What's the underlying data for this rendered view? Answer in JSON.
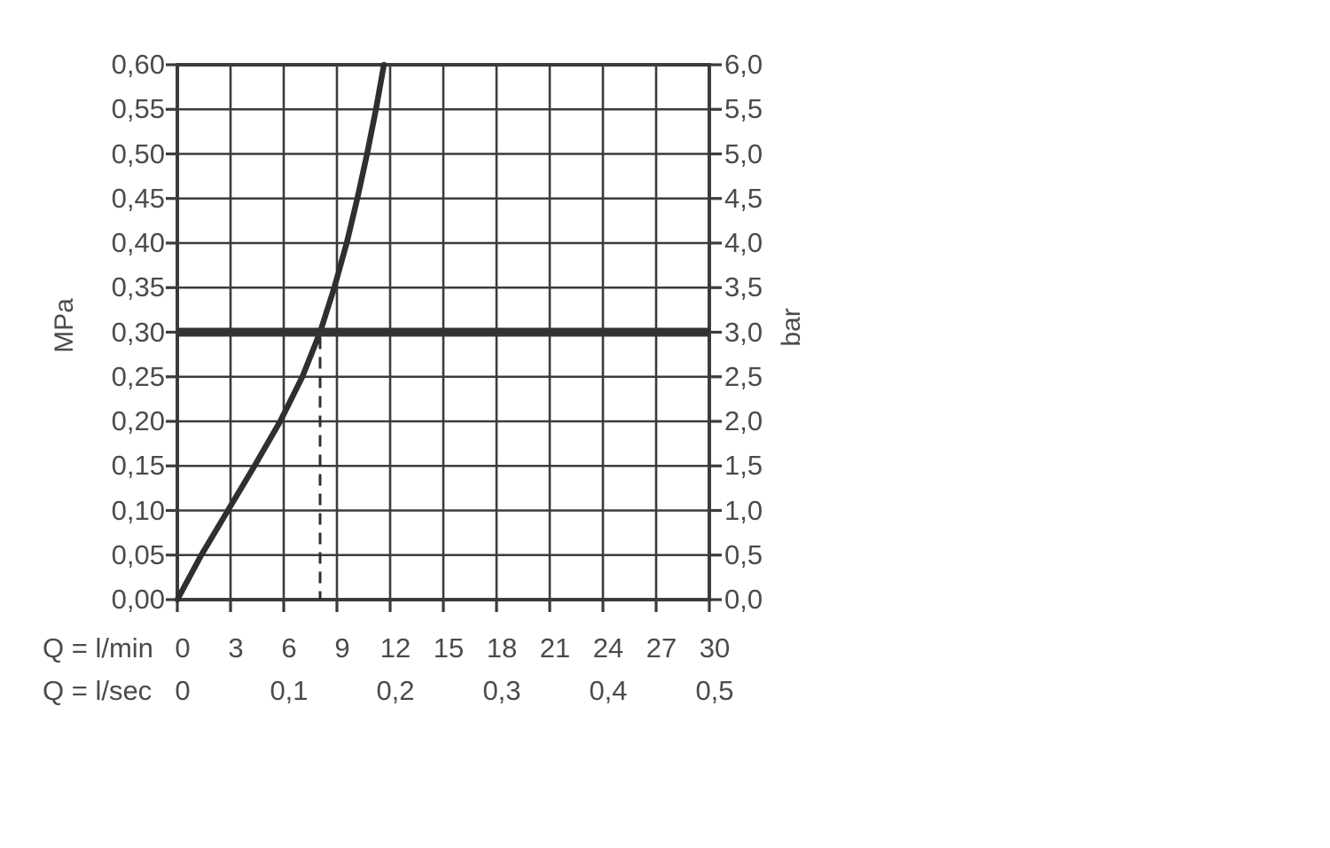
{
  "colors": {
    "grid": "#3b3b3b",
    "curve": "#2f2f2f",
    "reference_line": "#333333",
    "text": "#4b4b4b",
    "background": "#ffffff"
  },
  "chart_data": {
    "type": "line",
    "grid": true,
    "y_left": {
      "label": "MPa",
      "min": 0.0,
      "max": 0.6,
      "ticks": [
        "0,60",
        "0,55",
        "0,50",
        "0,45",
        "0,40",
        "0,35",
        "0,30",
        "0,25",
        "0,20",
        "0,15",
        "0,10",
        "0,05",
        "0,00"
      ]
    },
    "y_right": {
      "label": "bar",
      "min": 0.0,
      "max": 6.0,
      "ticks": [
        "6,0",
        "5,5",
        "5,0",
        "4,5",
        "4,0",
        "3,5",
        "3,0",
        "2,5",
        "2,0",
        "1,5",
        "1,0",
        "0,5",
        "0,0"
      ]
    },
    "x_lmin": {
      "label": "Q = l/min",
      "min": 0,
      "max": 30,
      "ticks": [
        "0",
        "3",
        "6",
        "9",
        "12",
        "15",
        "18",
        "21",
        "24",
        "27",
        "30"
      ],
      "tick_values": [
        0,
        3,
        6,
        9,
        12,
        15,
        18,
        21,
        24,
        27,
        30
      ]
    },
    "x_lsec": {
      "label": "Q = l/sec",
      "ticks": [
        "0",
        "0,1",
        "0,2",
        "0,3",
        "0,4",
        "0,5"
      ],
      "positions_lmin": [
        0,
        6,
        12,
        18,
        24,
        30
      ]
    },
    "series": [
      {
        "name": "flow-curve",
        "points_lmin_mpa": [
          [
            0,
            0.0
          ],
          [
            1.35,
            0.05
          ],
          [
            2.85,
            0.1
          ],
          [
            4.35,
            0.15
          ],
          [
            5.8,
            0.2
          ],
          [
            7.05,
            0.25
          ],
          [
            8.05,
            0.3
          ],
          [
            8.85,
            0.35
          ],
          [
            9.55,
            0.4
          ],
          [
            10.15,
            0.45
          ],
          [
            10.7,
            0.5
          ],
          [
            11.2,
            0.55
          ],
          [
            11.65,
            0.6
          ]
        ]
      }
    ],
    "reference_line": {
      "mpa": 0.3,
      "bar": 3.0
    },
    "guide_line": {
      "lmin": 8.05,
      "style": "dashed",
      "from_mpa": 0.3,
      "to_mpa": 0.0
    }
  }
}
